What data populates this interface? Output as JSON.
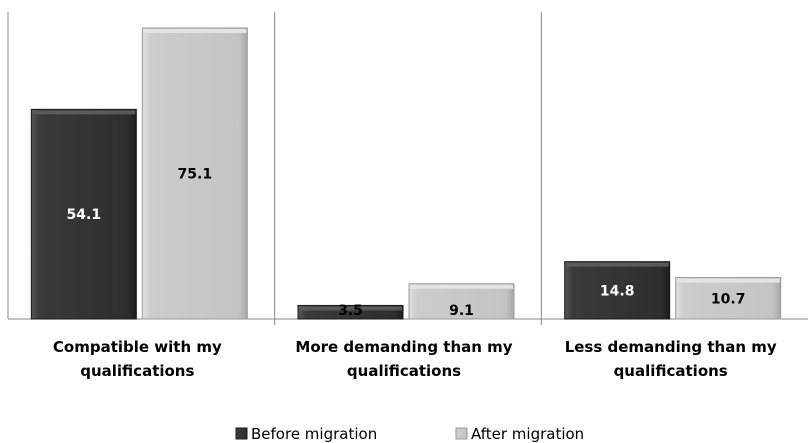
{
  "chart_data": {
    "type": "bar",
    "categories": [
      [
        "Compatible with my",
        "qualifications"
      ],
      [
        "More demanding than my",
        "qualifications"
      ],
      [
        "Less demanding than my",
        "qualifications"
      ]
    ],
    "series": [
      {
        "name": "Before migration",
        "values": [
          54.1,
          3.5,
          14.8
        ],
        "color": "#333333",
        "label_color": "#ffffff"
      },
      {
        "name": "After migration",
        "values": [
          75.1,
          9.1,
          10.7
        ],
        "color": "#c8c8c8",
        "label_color": "#000000"
      }
    ],
    "value_labels": [
      [
        "54.1",
        "3.5",
        "14.8"
      ],
      [
        "75.1",
        "9.1",
        "10.7"
      ]
    ],
    "ylim": [
      0,
      80
    ],
    "grid": false,
    "legend_position": "bottom"
  }
}
